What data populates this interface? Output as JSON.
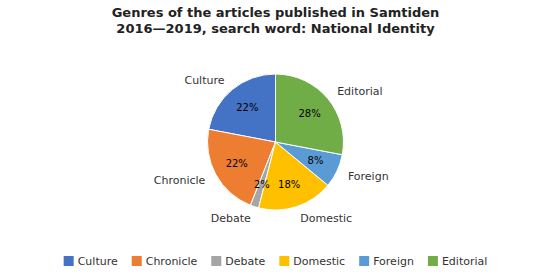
{
  "chart_data": {
    "type": "pie",
    "title": "Genres of the articles published in Samtiden\n2016—2019, search word: National Identity",
    "categories": [
      "Culture",
      "Chronicle",
      "Debate",
      "Domestic",
      "Foreign",
      "Editorial"
    ],
    "values": [
      22,
      22,
      2,
      18,
      8,
      28
    ],
    "colors": [
      "#4472C4",
      "#ED7D31",
      "#A5A5A5",
      "#FFC000",
      "#5B9BD5",
      "#70AD47"
    ],
    "data_labels": true,
    "legend": "bottom"
  }
}
